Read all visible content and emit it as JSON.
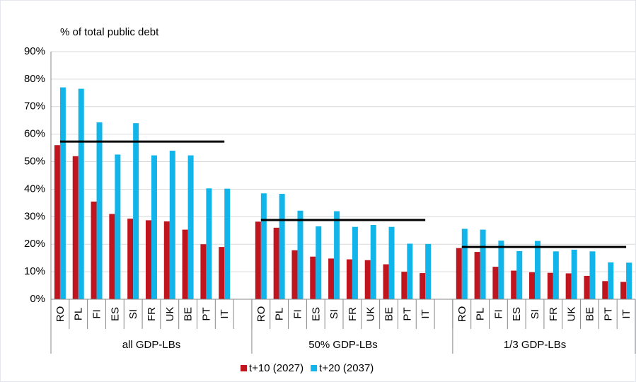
{
  "chart_data": {
    "type": "bar",
    "title": "% of total public debt",
    "categories": [
      "RO",
      "PL",
      "FI",
      "ES",
      "SI",
      "FR",
      "UK",
      "BE",
      "PT",
      "IT",
      null,
      "RO",
      "PL",
      "FI",
      "ES",
      "SI",
      "FR",
      "UK",
      "BE",
      "PT",
      "IT",
      null,
      "RO",
      "PL",
      "FI",
      "ES",
      "SI",
      "FR",
      "UK",
      "BE",
      "PT",
      "IT"
    ],
    "series": [
      {
        "name": "t+10 (2027)",
        "color": "#c0141e",
        "values": [
          56,
          52,
          35.5,
          31,
          29.3,
          28.7,
          28.3,
          25.3,
          20,
          19,
          null,
          28.2,
          26,
          17.8,
          15.5,
          14.8,
          14.5,
          14.2,
          12.7,
          10,
          9.5,
          null,
          18.6,
          17.2,
          11.8,
          10.4,
          9.8,
          9.6,
          9.4,
          8.5,
          6.6,
          6.3
        ]
      },
      {
        "name": "t+20 (2037)",
        "color": "#12b5ea",
        "values": [
          77,
          76.5,
          64.3,
          52.6,
          64,
          52.3,
          54,
          52.3,
          40.3,
          40.2,
          null,
          38.5,
          38.3,
          32.2,
          26.5,
          32,
          26.3,
          27,
          26.3,
          20.2,
          20.1,
          null,
          25.6,
          25.3,
          21.3,
          17.5,
          21.2,
          17.4,
          18,
          17.4,
          13.4,
          13.3
        ]
      }
    ],
    "groups": [
      {
        "label": "all GDP-LBs",
        "line": 57.3
      },
      {
        "label": "50% GDP-LBs",
        "line": 28.8
      },
      {
        "label": "1/3 GDP-LBs",
        "line": 19.0
      }
    ],
    "ylim": [
      0,
      90
    ],
    "yticks": [
      {
        "value": 0,
        "label": "0%"
      },
      {
        "value": 10,
        "label": "10%"
      },
      {
        "value": 20,
        "label": "20%"
      },
      {
        "value": 30,
        "label": "30%"
      },
      {
        "value": 40,
        "label": "40%"
      },
      {
        "value": 50,
        "label": "50%"
      },
      {
        "value": 60,
        "label": "60%"
      },
      {
        "value": 70,
        "label": "70%"
      },
      {
        "value": 80,
        "label": "80%"
      },
      {
        "value": 90,
        "label": "90%"
      }
    ],
    "grid": true,
    "legend": "bottom"
  }
}
